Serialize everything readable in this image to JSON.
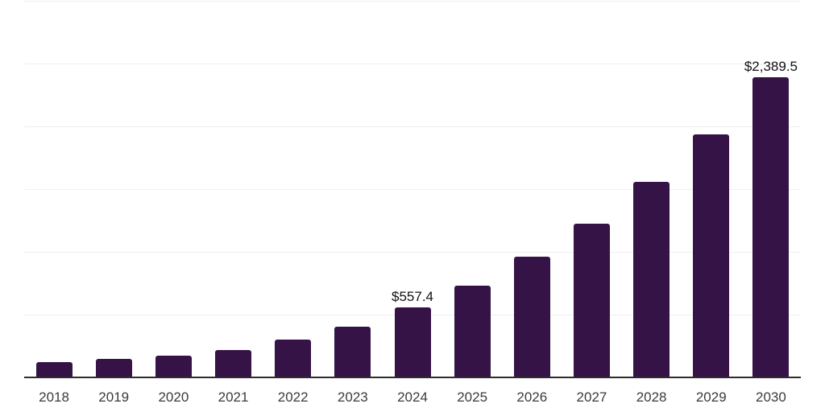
{
  "colors": {
    "background": "#ffffff",
    "bar": "#351347",
    "axis": "#2d2d2d",
    "gridline": "#efefef",
    "tick_label": "#3b3b3b",
    "value_label": "#111111"
  },
  "chart_data": {
    "type": "bar",
    "title": "",
    "xlabel": "",
    "ylabel": "",
    "categories": [
      "2018",
      "2019",
      "2020",
      "2021",
      "2022",
      "2023",
      "2024",
      "2025",
      "2026",
      "2027",
      "2028",
      "2029",
      "2030"
    ],
    "values": [
      120,
      147,
      173,
      218,
      299,
      406,
      557.4,
      734,
      959,
      1222,
      1558,
      1937,
      2389.5
    ],
    "bar_value_labels": [
      "",
      "",
      "",
      "",
      "",
      "",
      "$557.4",
      "",
      "",
      "",
      "",
      "",
      "$2,389.5"
    ],
    "ylim": [
      0,
      3000
    ],
    "gridline_step": 500,
    "grid": "horizontal",
    "y_axis_tick_labels_visible": false,
    "legend_position": "none"
  }
}
